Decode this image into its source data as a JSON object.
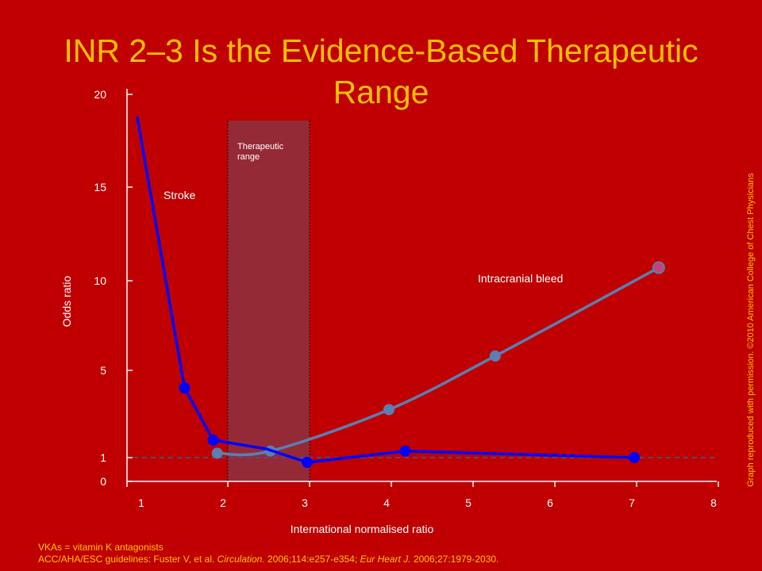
{
  "slide": {
    "title": "INR 2–3 Is the Evidence-Based Therapeutic Range",
    "credit": "Graph reproduced with permission. ©2010 American College of Chest Physicians"
  },
  "footnote": {
    "line1": "VKAs = vitamin K antagonists",
    "ref_prefix": "ACC/AHA/ESC guidelines: Fuster V, et al. ",
    "ref_journal1": "Circulation.",
    "ref_mid": " 2006;114:e257-e354; ",
    "ref_journal2": "Eur Heart J.",
    "ref_suffix": " 2006;27:1979-2030."
  },
  "colors": {
    "background": "#c00000",
    "title": "#ffc000",
    "stroke_series": "#0000ff",
    "bleed_series": "#5b7fb2",
    "therapeutic_band": "#952a37",
    "reference_line": "#3a5a9a",
    "axis": "#ffffff"
  },
  "chart_data": {
    "type": "line",
    "xlabel": "International normalised ratio",
    "ylabel": "Odds ratio",
    "xlim": [
      1,
      8
    ],
    "x_ticks": [
      1,
      2,
      3,
      4,
      5,
      6,
      7,
      8
    ],
    "y_ticks": [
      0,
      1,
      5,
      10,
      15,
      20
    ],
    "grid": false,
    "reference_line_y": 1,
    "therapeutic_range": {
      "x": [
        2,
        3
      ],
      "label": "Therapeutic range"
    },
    "series": [
      {
        "name": "Stroke",
        "x": [
          0.92,
          1.5,
          1.85,
          2.5,
          3.0,
          4.2,
          7.0
        ],
        "y": [
          18.8,
          4.2,
          1.8,
          1.4,
          0.8,
          1.3,
          1.0
        ]
      },
      {
        "name": "Intracranial bleed",
        "x": [
          1.9,
          2.55,
          4.0,
          5.3,
          7.3
        ],
        "y": [
          1.2,
          1.3,
          3.2,
          5.8,
          10.7
        ]
      }
    ]
  }
}
